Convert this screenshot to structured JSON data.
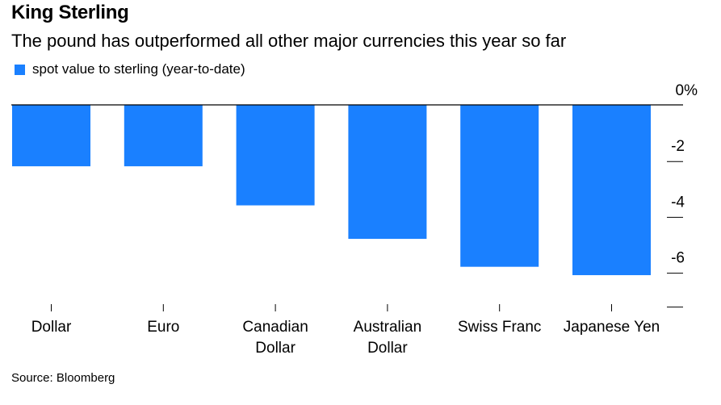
{
  "title": "King Sterling",
  "subtitle": "The pound has outperformed all other major currencies this year so far",
  "legend": {
    "label": "spot value to sterling (year-to-date)"
  },
  "source": "Source: Bloomberg",
  "colors": {
    "bar": "#1a80ff",
    "axis": "#000000"
  },
  "chart_data": {
    "type": "bar",
    "title": "King Sterling",
    "subtitle": "The pound has outperformed all other major currencies this year so far",
    "xlabel": "",
    "ylabel": "",
    "categories": [
      [
        "Dollar"
      ],
      [
        "Euro"
      ],
      [
        "Canadian",
        "Dollar"
      ],
      [
        "Australian",
        "Dollar"
      ],
      [
        "Swiss Franc"
      ],
      [
        "Japanese Yen"
      ]
    ],
    "series": [
      {
        "name": "spot value to sterling (year-to-date)",
        "values": [
          -2.2,
          -2.2,
          -3.6,
          -4.8,
          -5.8,
          -6.1
        ]
      }
    ],
    "ylim": [
      -7.3,
      0
    ],
    "yticks": [
      0,
      -2,
      -4,
      -6
    ],
    "ytick_labels": [
      "0%",
      "-2",
      "-4",
      "-6"
    ],
    "legend_position": "top-left"
  }
}
